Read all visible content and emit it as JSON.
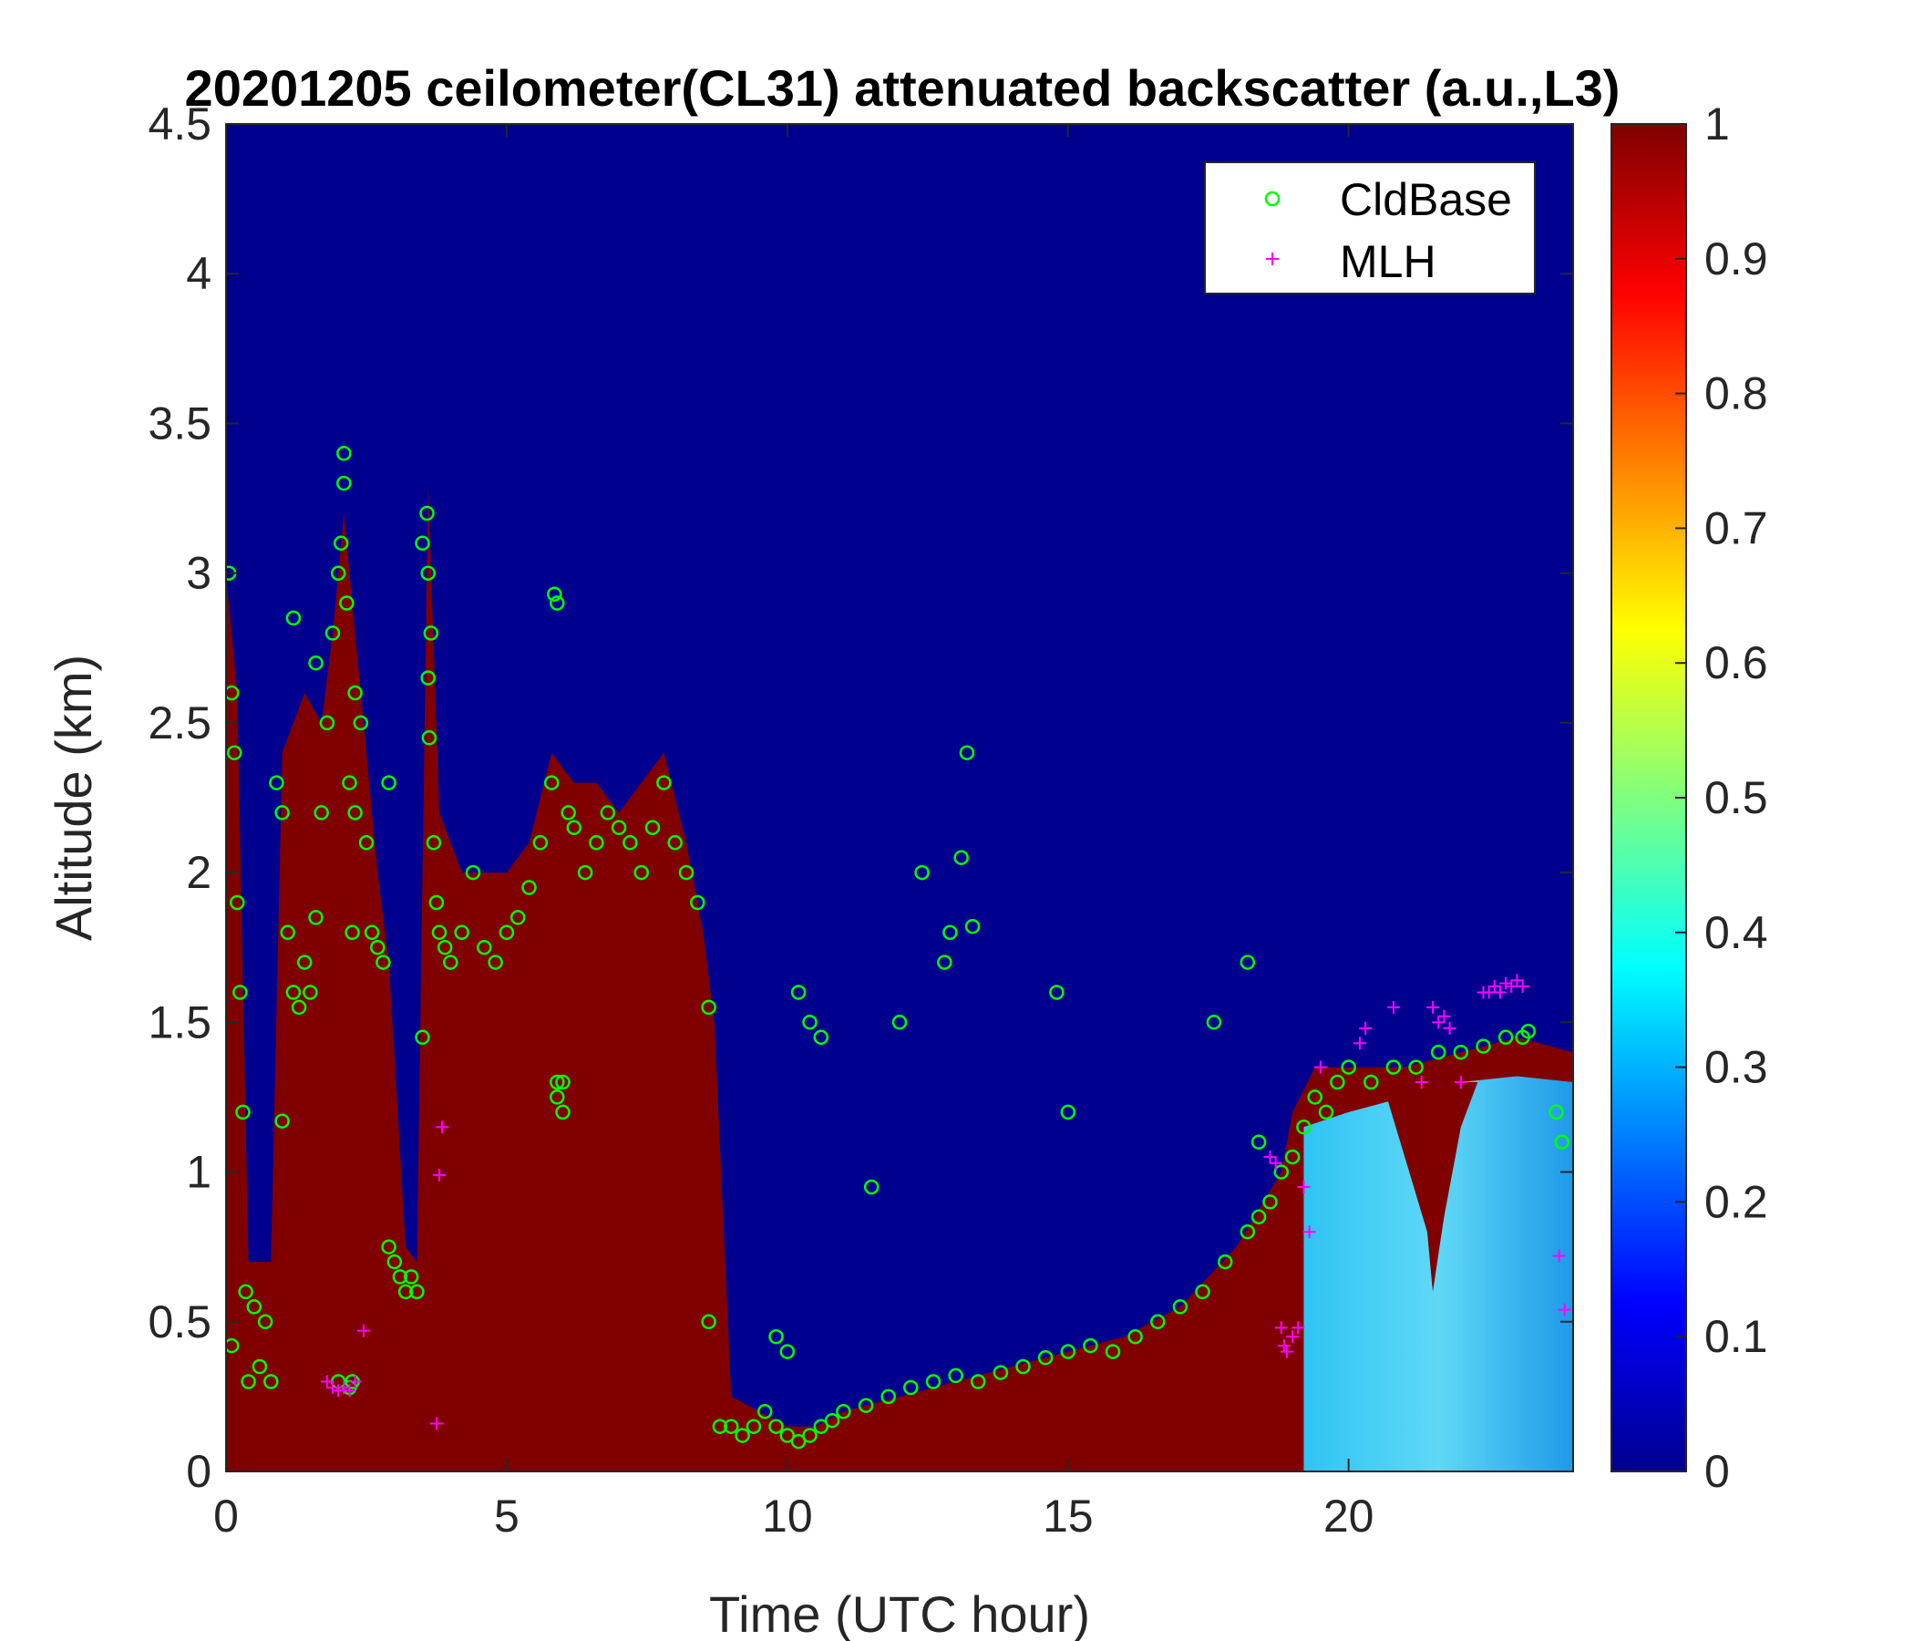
{
  "chart_data": {
    "type": "heatmap",
    "title": "20201205 ceilometer(CL31) attenuated backscatter (a.u.,L3)",
    "xlabel": "Time (UTC hour)",
    "ylabel": "Altitude (km)",
    "xlim": [
      0,
      24
    ],
    "ylim": [
      0,
      4.5
    ],
    "xticks": [
      0,
      5,
      10,
      15,
      20
    ],
    "yticks": [
      0,
      0.5,
      1,
      1.5,
      2,
      2.5,
      3,
      3.5,
      4,
      4.5
    ],
    "xtick_labels": [
      "0",
      "5",
      "10",
      "15",
      "20"
    ],
    "ytick_labels": [
      "0",
      "0.5",
      "1",
      "1.5",
      "2",
      "2.5",
      "3",
      "3.5",
      "4",
      "4.5"
    ],
    "colorbar": {
      "range": [
        0,
        1
      ],
      "ticks": [
        "0",
        "0.1",
        "0.2",
        "0.3",
        "0.4",
        "0.5",
        "0.6",
        "0.7",
        "0.8",
        "0.9",
        "1"
      ],
      "colormap": "jet"
    },
    "background_color": "#00008f",
    "saturated_color": "#800000",
    "grid": false,
    "legend": {
      "position": "top-right",
      "entries": [
        {
          "label": "CldBase",
          "marker": "circle",
          "color": "#00ff00"
        },
        {
          "label": "MLH",
          "marker": "plus",
          "color": "#ff00ff"
        }
      ]
    },
    "backscatter_layer_top_km": [
      [
        0.0,
        3.0
      ],
      [
        0.2,
        2.6
      ],
      [
        0.4,
        0.7
      ],
      [
        0.8,
        0.7
      ],
      [
        1.0,
        2.4
      ],
      [
        1.4,
        2.6
      ],
      [
        1.7,
        2.5
      ],
      [
        1.9,
        2.8
      ],
      [
        2.1,
        3.2
      ],
      [
        2.3,
        2.8
      ],
      [
        2.5,
        2.4
      ],
      [
        2.7,
        2.0
      ],
      [
        2.9,
        1.7
      ],
      [
        3.2,
        0.75
      ],
      [
        3.4,
        0.7
      ],
      [
        3.6,
        3.3
      ],
      [
        3.8,
        2.2
      ],
      [
        4.2,
        2.0
      ],
      [
        4.6,
        2.0
      ],
      [
        5.0,
        2.0
      ],
      [
        5.4,
        2.1
      ],
      [
        5.8,
        2.4
      ],
      [
        6.2,
        2.3
      ],
      [
        6.6,
        2.3
      ],
      [
        7.0,
        2.2
      ],
      [
        7.4,
        2.3
      ],
      [
        7.8,
        2.4
      ],
      [
        8.2,
        2.1
      ],
      [
        8.5,
        1.8
      ],
      [
        8.7,
        1.5
      ],
      [
        9.0,
        0.25
      ],
      [
        9.5,
        0.2
      ],
      [
        10.0,
        0.15
      ],
      [
        10.5,
        0.15
      ],
      [
        11.0,
        0.2
      ],
      [
        12.0,
        0.25
      ],
      [
        13.0,
        0.3
      ],
      [
        14.0,
        0.35
      ],
      [
        15.0,
        0.4
      ],
      [
        16.0,
        0.45
      ],
      [
        17.0,
        0.55
      ],
      [
        18.0,
        0.75
      ],
      [
        18.8,
        1.0
      ],
      [
        19.0,
        1.2
      ],
      [
        19.4,
        1.35
      ],
      [
        20.0,
        1.35
      ],
      [
        21.0,
        1.35
      ],
      [
        22.0,
        1.4
      ],
      [
        23.0,
        1.45
      ],
      [
        24.0,
        1.4
      ]
    ],
    "series": [
      {
        "name": "CldBase",
        "marker": "circle",
        "x": [
          0.05,
          0.1,
          0.15,
          0.2,
          0.25,
          0.3,
          0.35,
          0.4,
          0.5,
          0.6,
          0.7,
          0.8,
          0.9,
          1.0,
          1.1,
          1.2,
          1.3,
          1.4,
          1.5,
          1.6,
          1.7,
          1.8,
          1.9,
          2.0,
          2.05,
          2.1,
          2.15,
          2.2,
          2.25,
          2.3,
          2.4,
          2.5,
          2.6,
          2.7,
          2.8,
          2.9,
          3.0,
          3.1,
          3.2,
          3.3,
          3.4,
          3.5,
          3.6,
          3.65,
          3.7,
          3.75,
          3.8,
          3.9,
          4.0,
          4.2,
          4.4,
          4.6,
          4.8,
          5.0,
          5.2,
          5.4,
          5.6,
          5.8,
          5.9,
          6.0,
          6.1,
          6.2,
          6.4,
          6.6,
          6.8,
          7.0,
          7.2,
          7.4,
          7.6,
          7.8,
          8.0,
          8.2,
          8.4,
          8.6,
          8.8,
          9.0,
          9.2,
          9.4,
          9.6,
          9.8,
          10.0,
          10.2,
          10.4,
          10.6,
          10.8,
          11.0,
          11.4,
          11.8,
          12.2,
          12.6,
          13.0,
          13.4,
          13.8,
          14.2,
          14.6,
          15.0,
          15.4,
          15.8,
          16.2,
          16.6,
          17.0,
          17.4,
          17.8,
          18.2,
          18.4,
          18.6,
          18.8,
          19.0,
          19.2,
          19.4,
          19.6,
          19.8,
          20.0,
          20.4,
          20.8,
          21.2,
          21.6,
          22.0,
          22.4,
          22.8,
          23.1,
          23.2,
          1.0,
          1.6,
          2.1,
          2.3,
          2.9,
          3.5,
          5.9,
          6.0,
          10.2,
          10.4,
          10.6,
          11.5,
          12.0,
          12.4,
          12.8,
          13.2,
          14.8,
          15.0,
          17.6,
          18.2,
          18.4,
          23.7,
          23.8,
          3.58,
          3.6,
          3.62,
          5.85,
          5.9,
          8.6,
          9.8,
          10.0,
          12.9,
          13.1,
          13.3,
          2.2,
          2.25,
          2.0,
          0.1,
          1.2
        ],
        "y": [
          3.0,
          2.6,
          2.4,
          1.9,
          1.6,
          1.2,
          0.6,
          0.3,
          0.55,
          0.35,
          0.5,
          0.3,
          2.3,
          2.2,
          1.8,
          1.6,
          1.55,
          1.7,
          1.6,
          1.85,
          2.2,
          2.5,
          2.8,
          3.0,
          3.1,
          3.4,
          2.9,
          2.3,
          1.8,
          2.6,
          2.5,
          2.1,
          1.8,
          1.75,
          1.7,
          0.75,
          0.7,
          0.65,
          0.6,
          0.65,
          0.6,
          1.45,
          3.0,
          2.8,
          2.1,
          1.9,
          1.8,
          1.75,
          1.7,
          1.8,
          2.0,
          1.75,
          1.7,
          1.8,
          1.85,
          1.95,
          2.1,
          2.3,
          1.25,
          1.2,
          2.2,
          2.15,
          2.0,
          2.1,
          2.2,
          2.15,
          2.1,
          2.0,
          2.15,
          2.3,
          2.1,
          2.0,
          1.9,
          1.55,
          0.15,
          0.15,
          0.12,
          0.15,
          0.2,
          0.15,
          0.12,
          0.1,
          0.12,
          0.15,
          0.17,
          0.2,
          0.22,
          0.25,
          0.28,
          0.3,
          0.32,
          0.3,
          0.33,
          0.35,
          0.38,
          0.4,
          0.42,
          0.4,
          0.45,
          0.5,
          0.55,
          0.6,
          0.7,
          0.8,
          0.85,
          0.9,
          1.0,
          1.05,
          1.15,
          1.25,
          1.2,
          1.3,
          1.35,
          1.3,
          1.35,
          1.35,
          1.4,
          1.4,
          1.42,
          1.45,
          1.45,
          1.47,
          1.17,
          2.7,
          3.3,
          2.2,
          2.3,
          3.1,
          2.9,
          1.3,
          1.6,
          1.5,
          1.45,
          0.95,
          1.5,
          2.0,
          1.7,
          2.4,
          1.6,
          1.2,
          1.5,
          1.7,
          1.1,
          1.2,
          1.1,
          3.2,
          2.65,
          2.45,
          2.93,
          1.3,
          0.5,
          0.45,
          0.4,
          1.8,
          2.05,
          1.82,
          0.28,
          0.3,
          0.3,
          0.42,
          2.85
        ]
      },
      {
        "name": "MLH",
        "marker": "plus",
        "x": [
          1.8,
          1.9,
          2.0,
          2.1,
          2.2,
          2.3,
          2.45,
          3.75,
          3.8,
          3.85,
          18.6,
          18.7,
          18.8,
          18.85,
          18.9,
          19.0,
          19.1,
          19.2,
          19.3,
          19.5,
          20.2,
          20.3,
          20.8,
          21.3,
          21.5,
          21.6,
          21.7,
          21.8,
          22.0,
          22.4,
          22.5,
          22.6,
          22.7,
          22.8,
          22.9,
          23.0,
          23.1,
          23.75,
          23.85
        ],
        "y": [
          0.3,
          0.28,
          0.27,
          0.28,
          0.27,
          0.3,
          0.47,
          0.16,
          0.99,
          1.15,
          1.05,
          1.03,
          0.48,
          0.42,
          0.4,
          0.45,
          0.48,
          0.95,
          0.8,
          1.35,
          1.43,
          1.48,
          1.55,
          1.3,
          1.55,
          1.5,
          1.52,
          1.48,
          1.3,
          1.6,
          1.6,
          1.62,
          1.6,
          1.63,
          1.62,
          1.64,
          1.62,
          0.72,
          0.54
        ]
      }
    ]
  }
}
